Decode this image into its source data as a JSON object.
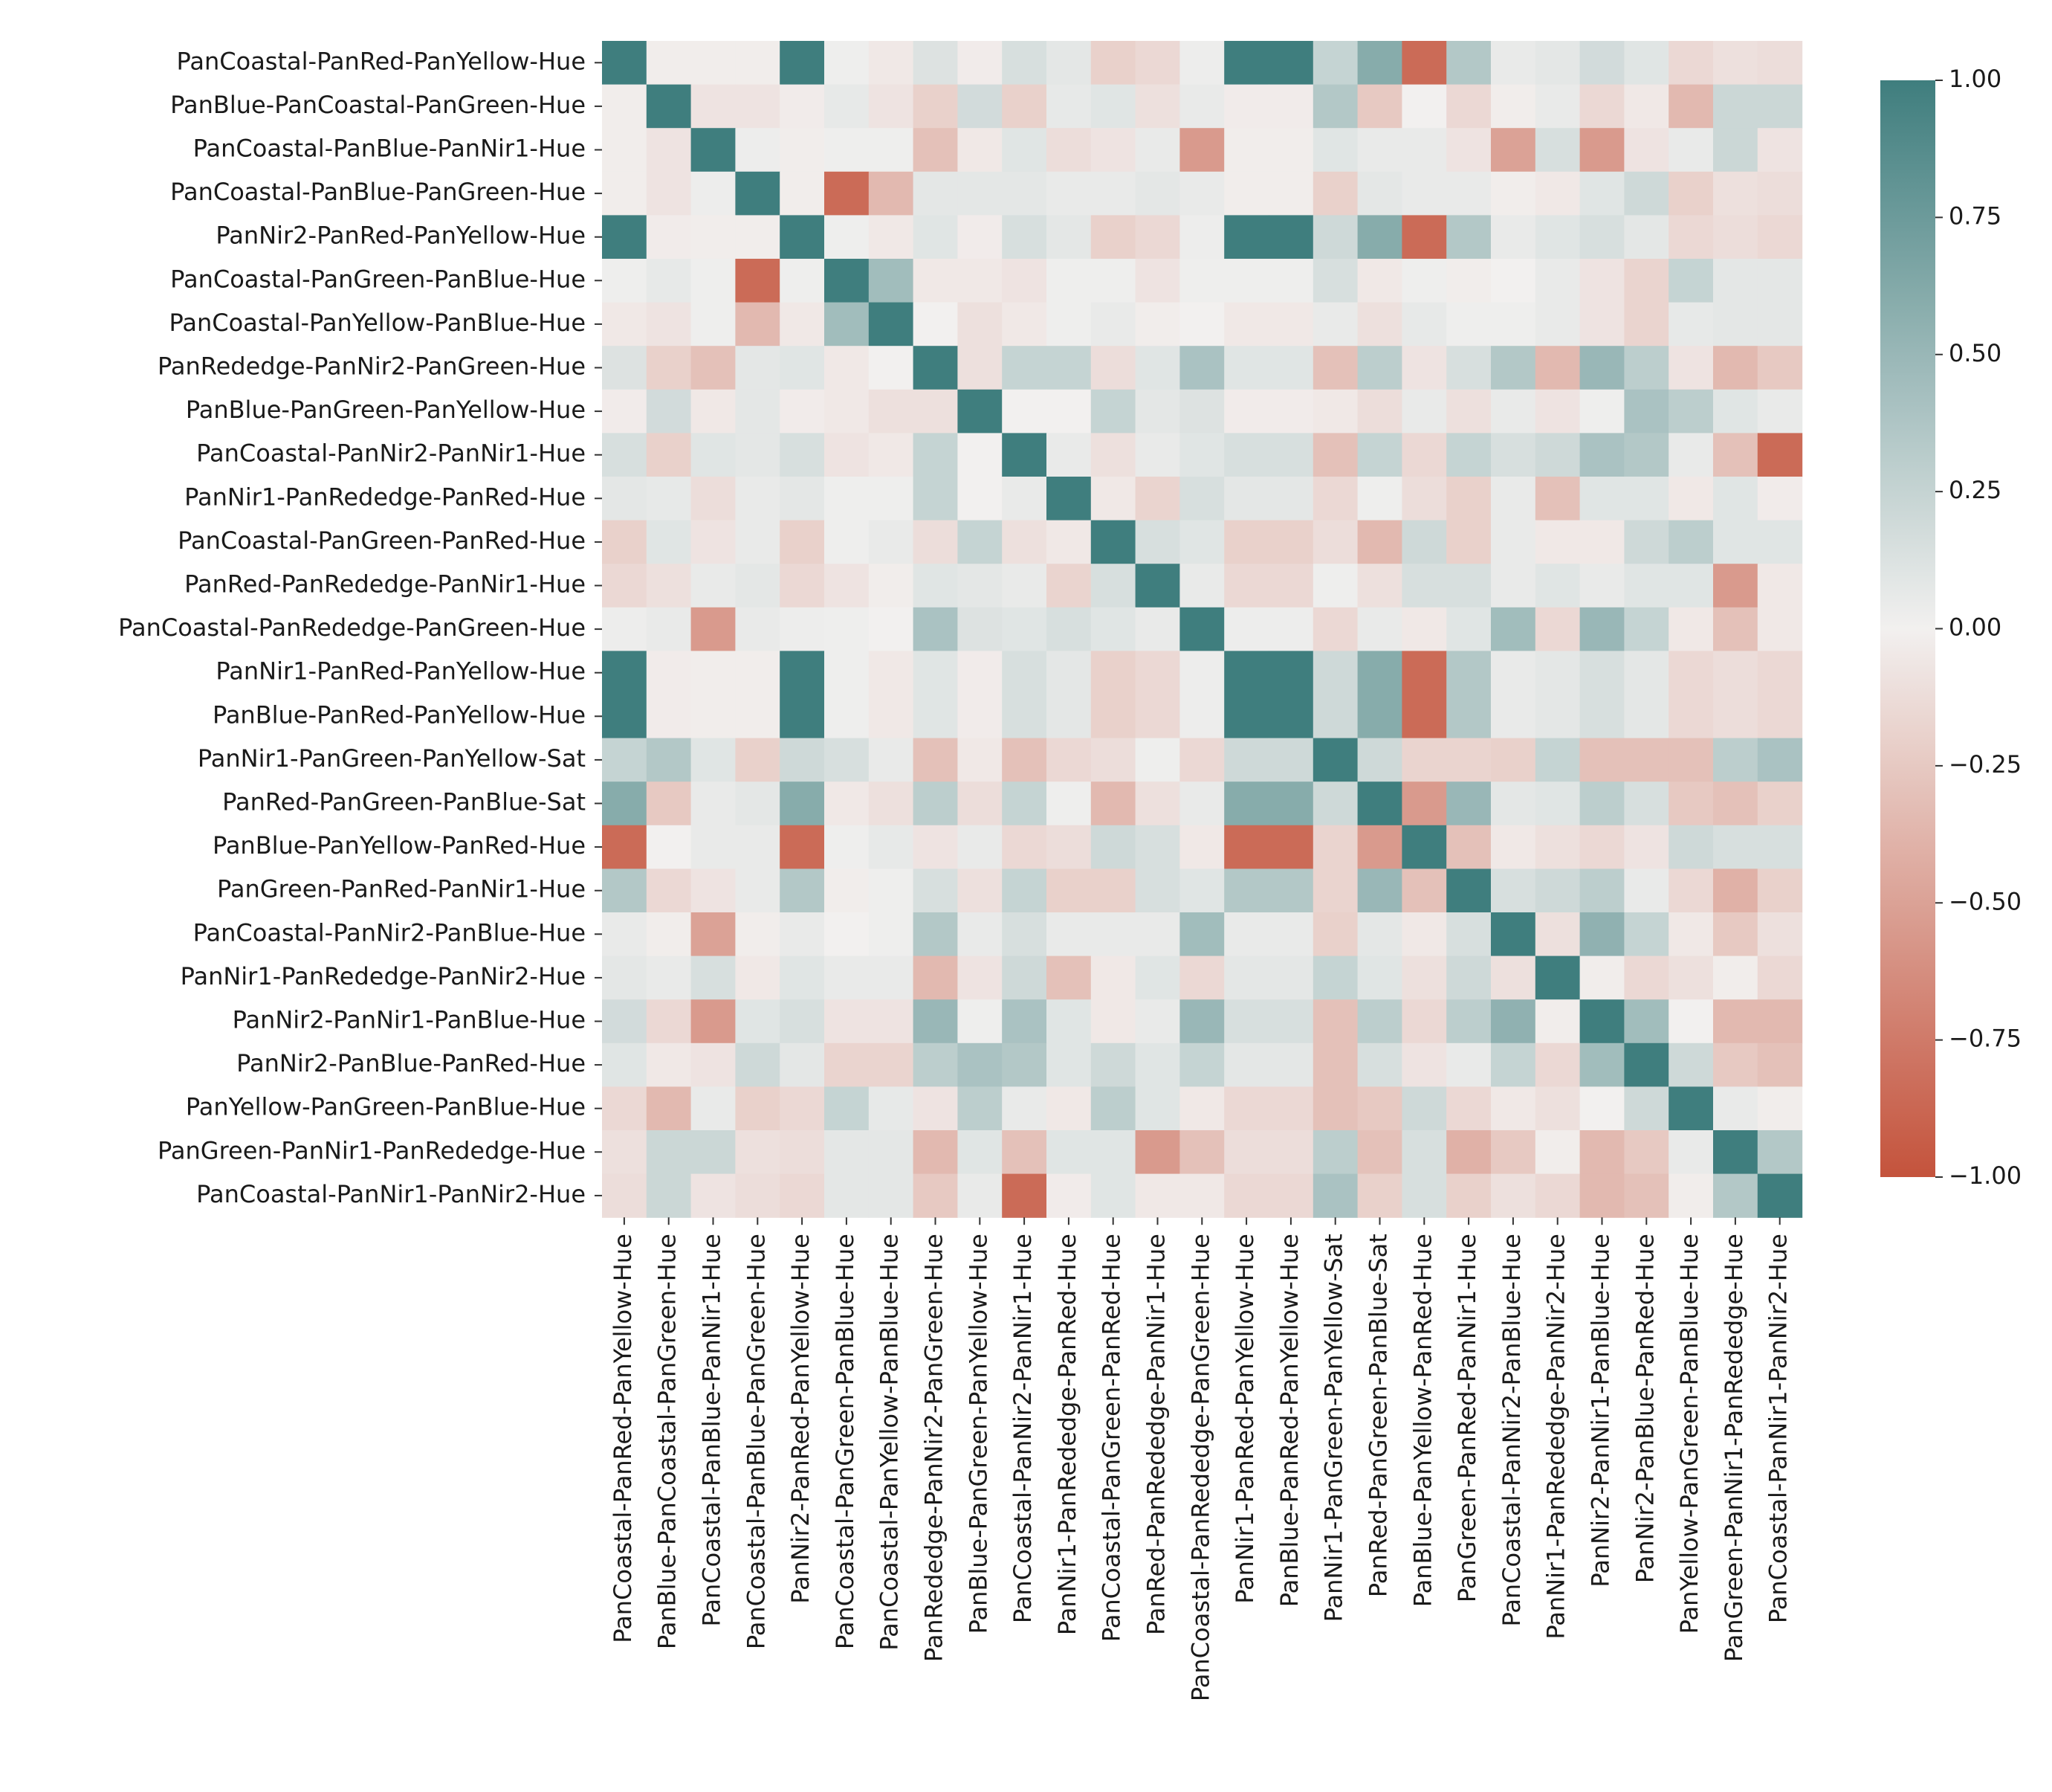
{
  "chart_data": {
    "type": "heatmap",
    "title": "",
    "xlabel": "",
    "ylabel": "",
    "labels": [
      "PanCoastal-PanRed-PanYellow-Hue",
      "PanBlue-PanCoastal-PanGreen-Hue",
      "PanCoastal-PanBlue-PanNir1-Hue",
      "PanCoastal-PanBlue-PanGreen-Hue",
      "PanNir2-PanRed-PanYellow-Hue",
      "PanCoastal-PanGreen-PanBlue-Hue",
      "PanCoastal-PanYellow-PanBlue-Hue",
      "PanRededge-PanNir2-PanGreen-Hue",
      "PanBlue-PanGreen-PanYellow-Hue",
      "PanCoastal-PanNir2-PanNir1-Hue",
      "PanNir1-PanRededge-PanRed-Hue",
      "PanCoastal-PanGreen-PanRed-Hue",
      "PanRed-PanRededge-PanNir1-Hue",
      "PanCoastal-PanRededge-PanGreen-Hue",
      "PanNir1-PanRed-PanYellow-Hue",
      "PanBlue-PanRed-PanYellow-Hue",
      "PanNir1-PanGreen-PanYellow-Sat",
      "PanRed-PanGreen-PanBlue-Sat",
      "PanBlue-PanYellow-PanRed-Hue",
      "PanGreen-PanRed-PanNir1-Hue",
      "PanCoastal-PanNir2-PanBlue-Hue",
      "PanNir1-PanRededge-PanNir2-Hue",
      "PanNir2-PanNir1-PanBlue-Hue",
      "PanNir2-PanBlue-PanRed-Hue",
      "PanYellow-PanGreen-PanBlue-Hue",
      "PanGreen-PanNir1-PanRededge-Hue",
      "PanCoastal-PanNir1-PanNir2-Hue"
    ],
    "matrix": [
      [
        1.0,
        -0.02,
        -0.02,
        -0.02,
        1.0,
        0.02,
        -0.05,
        0.12,
        -0.03,
        0.15,
        0.08,
        -0.2,
        -0.15,
        0.03,
        1.0,
        1.0,
        0.25,
        0.6,
        -0.85,
        0.35,
        0.05,
        0.08,
        0.18,
        0.1,
        -0.15,
        -0.1,
        -0.12
      ],
      [
        -0.02,
        1.0,
        -0.08,
        -0.08,
        -0.03,
        0.06,
        -0.08,
        -0.2,
        0.18,
        -0.2,
        0.06,
        0.1,
        -0.1,
        0.05,
        -0.03,
        -0.03,
        0.35,
        -0.25,
        0.0,
        -0.15,
        -0.02,
        0.05,
        -0.15,
        -0.05,
        -0.35,
        0.22,
        0.22
      ],
      [
        -0.02,
        -0.08,
        1.0,
        0.03,
        -0.02,
        0.02,
        0.02,
        -0.3,
        -0.05,
        0.1,
        -0.12,
        -0.08,
        0.05,
        -0.55,
        -0.02,
        -0.02,
        0.1,
        0.05,
        0.05,
        -0.08,
        -0.5,
        0.15,
        -0.55,
        -0.08,
        0.05,
        0.22,
        -0.08
      ],
      [
        -0.02,
        -0.08,
        0.03,
        1.0,
        -0.02,
        -0.85,
        -0.35,
        0.08,
        0.08,
        0.08,
        0.05,
        0.05,
        0.08,
        0.05,
        -0.02,
        -0.02,
        -0.2,
        0.08,
        0.05,
        0.05,
        -0.02,
        -0.05,
        0.1,
        0.2,
        -0.2,
        -0.1,
        -0.12
      ],
      [
        1.0,
        -0.03,
        -0.02,
        -0.02,
        1.0,
        0.02,
        -0.05,
        0.1,
        -0.03,
        0.15,
        0.08,
        -0.2,
        -0.15,
        0.03,
        1.0,
        1.0,
        0.2,
        0.6,
        -0.85,
        0.35,
        0.05,
        0.1,
        0.15,
        0.08,
        -0.15,
        -0.12,
        -0.15
      ],
      [
        0.02,
        0.06,
        0.02,
        -0.85,
        0.02,
        1.0,
        0.45,
        -0.05,
        -0.05,
        -0.08,
        0.02,
        0.02,
        -0.08,
        0.02,
        0.02,
        0.02,
        0.15,
        -0.05,
        0.02,
        -0.02,
        0.0,
        0.05,
        -0.08,
        -0.18,
        0.25,
        0.08,
        0.08
      ],
      [
        -0.05,
        -0.08,
        0.02,
        -0.35,
        -0.05,
        0.45,
        1.0,
        0.0,
        -0.1,
        -0.05,
        0.02,
        0.05,
        -0.02,
        0.0,
        -0.05,
        -0.05,
        0.05,
        -0.1,
        0.06,
        0.02,
        0.02,
        0.05,
        -0.08,
        -0.18,
        0.06,
        0.08,
        0.08
      ],
      [
        0.12,
        -0.2,
        -0.3,
        0.08,
        0.1,
        -0.05,
        0.0,
        1.0,
        -0.1,
        0.25,
        0.25,
        -0.12,
        0.1,
        0.4,
        0.1,
        0.1,
        -0.3,
        0.3,
        -0.08,
        0.15,
        0.35,
        -0.35,
        0.5,
        0.3,
        -0.08,
        -0.35,
        -0.25
      ],
      [
        -0.03,
        0.18,
        -0.05,
        0.08,
        -0.03,
        -0.05,
        -0.1,
        -0.1,
        1.0,
        0.0,
        0.0,
        0.25,
        0.08,
        0.12,
        -0.03,
        -0.03,
        -0.05,
        -0.12,
        0.05,
        -0.1,
        0.05,
        -0.08,
        0.02,
        0.4,
        0.3,
        0.1,
        0.05
      ],
      [
        0.15,
        -0.2,
        0.1,
        0.08,
        0.15,
        -0.08,
        -0.05,
        0.25,
        0.0,
        1.0,
        0.05,
        -0.1,
        0.05,
        0.1,
        0.15,
        0.15,
        -0.3,
        0.25,
        -0.15,
        0.25,
        0.15,
        0.2,
        0.4,
        0.35,
        0.05,
        -0.3,
        -0.85
      ],
      [
        0.08,
        0.06,
        -0.12,
        0.05,
        0.08,
        0.02,
        0.02,
        0.25,
        0.0,
        0.05,
        1.0,
        -0.05,
        -0.18,
        0.15,
        0.08,
        0.08,
        -0.15,
        0.02,
        -0.12,
        -0.2,
        0.05,
        -0.3,
        0.1,
        0.1,
        -0.05,
        0.1,
        -0.03
      ],
      [
        -0.2,
        0.1,
        -0.08,
        0.05,
        -0.2,
        0.02,
        0.05,
        -0.12,
        0.25,
        -0.1,
        -0.05,
        1.0,
        0.15,
        0.1,
        -0.2,
        -0.2,
        -0.12,
        -0.35,
        0.2,
        -0.2,
        0.05,
        -0.05,
        -0.05,
        0.2,
        0.3,
        0.1,
        0.1
      ],
      [
        -0.15,
        -0.1,
        0.05,
        0.08,
        -0.15,
        -0.08,
        -0.02,
        0.1,
        0.08,
        0.05,
        -0.18,
        0.15,
        1.0,
        0.05,
        -0.15,
        -0.15,
        0.02,
        -0.1,
        0.15,
        0.15,
        0.05,
        0.1,
        0.05,
        0.1,
        0.1,
        -0.55,
        -0.05
      ],
      [
        0.03,
        0.05,
        -0.55,
        0.05,
        0.03,
        0.02,
        0.0,
        0.4,
        0.12,
        0.1,
        0.15,
        0.1,
        0.05,
        1.0,
        0.03,
        0.03,
        -0.15,
        0.05,
        -0.05,
        0.1,
        0.45,
        -0.15,
        0.5,
        0.25,
        -0.05,
        -0.3,
        -0.05
      ],
      [
        1.0,
        -0.03,
        -0.02,
        -0.02,
        1.0,
        0.02,
        -0.05,
        0.1,
        -0.03,
        0.15,
        0.08,
        -0.2,
        -0.15,
        0.03,
        1.0,
        1.0,
        0.2,
        0.6,
        -0.85,
        0.35,
        0.05,
        0.08,
        0.15,
        0.08,
        -0.15,
        -0.12,
        -0.15
      ],
      [
        1.0,
        -0.03,
        -0.02,
        -0.02,
        1.0,
        0.02,
        -0.05,
        0.1,
        -0.03,
        0.15,
        0.08,
        -0.2,
        -0.15,
        0.03,
        1.0,
        1.0,
        0.2,
        0.6,
        -0.85,
        0.35,
        0.05,
        0.08,
        0.15,
        0.08,
        -0.15,
        -0.12,
        -0.15
      ],
      [
        0.25,
        0.35,
        0.1,
        -0.2,
        0.2,
        0.15,
        0.05,
        -0.3,
        -0.05,
        -0.3,
        -0.15,
        -0.12,
        0.02,
        -0.15,
        0.2,
        0.2,
        1.0,
        0.2,
        -0.18,
        -0.18,
        -0.2,
        0.25,
        -0.3,
        -0.3,
        -0.3,
        0.3,
        0.4
      ],
      [
        0.6,
        -0.25,
        0.05,
        0.08,
        0.6,
        -0.05,
        -0.1,
        0.3,
        -0.12,
        0.25,
        0.02,
        -0.35,
        -0.1,
        0.05,
        0.6,
        0.6,
        0.2,
        1.0,
        -0.55,
        0.5,
        0.08,
        0.1,
        0.3,
        0.15,
        -0.25,
        -0.3,
        -0.2
      ],
      [
        -0.85,
        0.0,
        0.05,
        0.05,
        -0.85,
        0.02,
        0.06,
        -0.08,
        0.05,
        -0.15,
        -0.12,
        0.2,
        0.15,
        -0.05,
        -0.85,
        -0.85,
        -0.18,
        -0.55,
        1.0,
        -0.3,
        -0.05,
        -0.1,
        -0.15,
        -0.08,
        0.2,
        0.15,
        0.15
      ],
      [
        0.35,
        -0.15,
        -0.08,
        0.05,
        0.35,
        -0.02,
        0.02,
        0.15,
        -0.1,
        0.25,
        -0.2,
        -0.2,
        0.15,
        0.1,
        0.35,
        0.35,
        -0.18,
        0.5,
        -0.3,
        1.0,
        0.15,
        0.2,
        0.3,
        0.05,
        -0.15,
        -0.4,
        -0.2
      ],
      [
        0.05,
        -0.02,
        -0.5,
        -0.02,
        0.05,
        0.0,
        0.02,
        0.35,
        0.05,
        0.15,
        0.05,
        0.05,
        0.05,
        0.45,
        0.05,
        0.05,
        -0.2,
        0.08,
        -0.05,
        0.15,
        1.0,
        -0.1,
        0.55,
        0.25,
        -0.05,
        -0.25,
        -0.1
      ],
      [
        0.08,
        0.05,
        0.15,
        -0.05,
        0.1,
        0.05,
        0.05,
        -0.35,
        -0.08,
        0.2,
        -0.3,
        -0.05,
        0.1,
        -0.15,
        0.08,
        0.08,
        0.25,
        0.1,
        -0.1,
        0.2,
        -0.1,
        1.0,
        -0.02,
        -0.15,
        -0.1,
        -0.02,
        -0.15
      ],
      [
        0.18,
        -0.15,
        -0.55,
        0.1,
        0.15,
        -0.08,
        -0.08,
        0.5,
        0.02,
        0.4,
        0.1,
        -0.05,
        0.05,
        0.5,
        0.15,
        0.15,
        -0.3,
        0.3,
        -0.15,
        0.3,
        0.55,
        -0.02,
        1.0,
        0.45,
        0.0,
        -0.35,
        -0.35
      ],
      [
        0.1,
        -0.05,
        -0.08,
        0.2,
        0.08,
        -0.18,
        -0.18,
        0.3,
        0.4,
        0.35,
        0.1,
        0.2,
        0.1,
        0.25,
        0.08,
        0.08,
        -0.3,
        0.15,
        -0.08,
        0.05,
        0.25,
        -0.15,
        0.45,
        1.0,
        0.2,
        -0.25,
        -0.3
      ],
      [
        -0.15,
        -0.35,
        0.05,
        -0.2,
        -0.15,
        0.25,
        0.06,
        -0.08,
        0.3,
        0.05,
        -0.05,
        0.3,
        0.1,
        -0.05,
        -0.15,
        -0.15,
        -0.3,
        -0.25,
        0.2,
        -0.15,
        -0.05,
        -0.1,
        0.0,
        0.2,
        1.0,
        0.05,
        -0.02
      ],
      [
        -0.1,
        0.22,
        0.22,
        -0.1,
        -0.12,
        0.08,
        0.08,
        -0.35,
        0.1,
        -0.3,
        0.1,
        0.1,
        -0.55,
        -0.3,
        -0.12,
        -0.12,
        0.3,
        -0.3,
        0.15,
        -0.4,
        -0.25,
        -0.02,
        -0.35,
        -0.25,
        0.05,
        1.0,
        0.35
      ],
      [
        -0.12,
        0.22,
        -0.08,
        -0.12,
        -0.15,
        0.08,
        0.08,
        -0.25,
        0.05,
        -0.85,
        -0.03,
        0.1,
        -0.05,
        -0.05,
        -0.15,
        -0.15,
        0.4,
        -0.2,
        0.15,
        -0.2,
        -0.1,
        -0.15,
        -0.35,
        -0.3,
        -0.02,
        0.35,
        1.0
      ]
    ],
    "vmin": -1.0,
    "vmax": 1.0,
    "colormap": {
      "low": "#c4533c",
      "mid": "#f2f0ef",
      "high": "#3f7e7e"
    },
    "colorbar_ticks": [
      "1.00",
      "0.75",
      "0.50",
      "0.25",
      "0.00",
      "−0.25",
      "−0.50",
      "−0.75",
      "−1.00"
    ],
    "colorbar_tick_values": [
      1.0,
      0.75,
      0.5,
      0.25,
      0.0,
      -0.25,
      -0.5,
      -0.75,
      -1.0
    ],
    "legend_position": "right"
  }
}
